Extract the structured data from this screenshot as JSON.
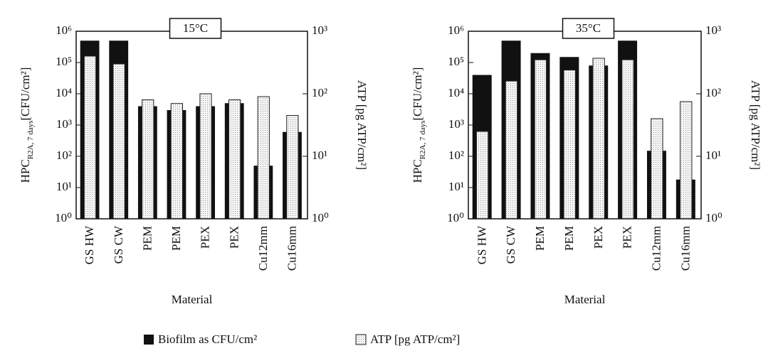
{
  "chart_data": [
    {
      "type": "bar",
      "title": "15°C",
      "categories": [
        "GS HW",
        "GS CW",
        "PEM",
        "PEM",
        "PEX",
        "PEX",
        "Cu12mm",
        "Cu16mm"
      ],
      "xlabel": "Material",
      "ylabel": "HPC",
      "ylabel_sub": "R2A, 7 days",
      "ylabel_unit": "[CFU/cm²]",
      "y2label": "ATP [pg ATP/cm²]",
      "log_scale": true,
      "ylim": [
        1,
        1000000
      ],
      "yticks": [
        {
          "value": 1,
          "label": "10⁰"
        },
        {
          "value": 10,
          "label": "10¹"
        },
        {
          "value": 100,
          "label": "10²"
        },
        {
          "value": 1000,
          "label": "10³"
        },
        {
          "value": 10000,
          "label": "10⁴"
        },
        {
          "value": 100000,
          "label": "10⁵"
        },
        {
          "value": 1000000,
          "label": "10⁶"
        }
      ],
      "y2lim": [
        1,
        1000
      ],
      "y2ticks": [
        {
          "value": 1,
          "label": "10⁰"
        },
        {
          "value": 10,
          "label": "10¹"
        },
        {
          "value": 100,
          "label": "10²"
        },
        {
          "value": 1000,
          "label": "10³"
        }
      ],
      "series": [
        {
          "color": "#111111",
          "values": [
            500000,
            500000,
            4000,
            3000,
            4000,
            5000,
            50,
            600
          ]
        },
        {
          "color": "#e4e4e4",
          "axis": "y2",
          "values": [
            400,
            300,
            80,
            70,
            100,
            80,
            90,
            45
          ]
        }
      ]
    },
    {
      "type": "bar",
      "title": "35°C",
      "categories": [
        "GS HW",
        "GS CW",
        "PEM",
        "PEM",
        "PEX",
        "PEX",
        "Cu12mm",
        "Cu16mm"
      ],
      "xlabel": "Material",
      "ylabel": "HPC",
      "ylabel_sub": "R2A, 7 days",
      "ylabel_unit": "[CFU/cm²]",
      "y2label": "ATP [pg ATP/cm²]",
      "log_scale": true,
      "ylim": [
        1,
        1000000
      ],
      "yticks": [
        {
          "value": 1,
          "label": "10⁰"
        },
        {
          "value": 10,
          "label": "10¹"
        },
        {
          "value": 100,
          "label": "10²"
        },
        {
          "value": 1000,
          "label": "10³"
        },
        {
          "value": 10000,
          "label": "10⁴"
        },
        {
          "value": 100000,
          "label": "10⁵"
        },
        {
          "value": 1000000,
          "label": "10⁶"
        }
      ],
      "y2lim": [
        1,
        1000
      ],
      "y2ticks": [
        {
          "value": 1,
          "label": "10⁰"
        },
        {
          "value": 10,
          "label": "10¹"
        },
        {
          "value": 100,
          "label": "10²"
        },
        {
          "value": 1000,
          "label": "10³"
        }
      ],
      "series": [
        {
          "color": "#111111",
          "values": [
            40000,
            500000,
            200000,
            150000,
            80000,
            500000,
            150,
            18
          ]
        },
        {
          "color": "#e4e4e4",
          "axis": "y2",
          "values": [
            25,
            160,
            350,
            240,
            370,
            350,
            40,
            75
          ]
        }
      ]
    }
  ],
  "legend": [
    "Biofilm as CFU/cm²",
    "ATP [pg ATP/cm²]"
  ]
}
